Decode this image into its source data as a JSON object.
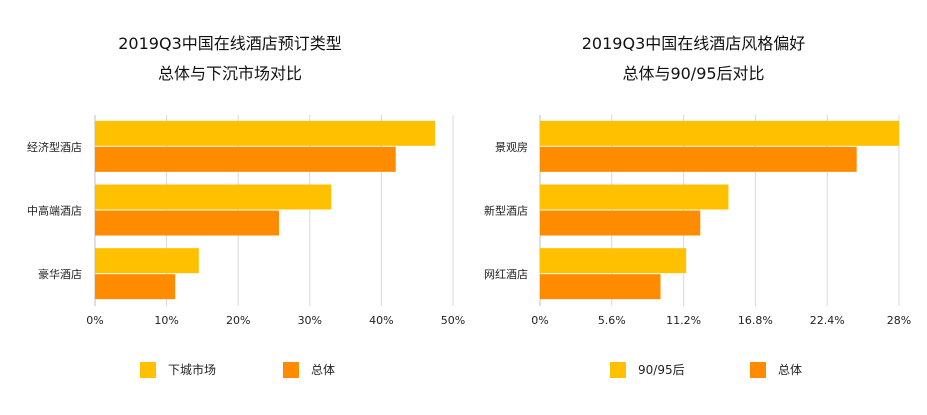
{
  "colors": {
    "series_a": "#FFC000",
    "series_b": "#FF8C00",
    "grid": "#d9d9d9",
    "axis": "#bfbfbf"
  },
  "chart_data": [
    {
      "type": "bar",
      "orientation": "horizontal",
      "title_line1": "2019Q3中国在线酒店预订类型",
      "title_line2": "总体与下沉市场对比",
      "categories": [
        "经济型酒店",
        "中高端酒店",
        "豪华酒店"
      ],
      "series": [
        {
          "name": "下城市场",
          "values": [
            47.5,
            33.0,
            14.5
          ]
        },
        {
          "name": "总体",
          "values": [
            42.0,
            25.7,
            11.2
          ]
        }
      ],
      "ticks": [
        "0%",
        "10%",
        "20%",
        "30%",
        "40%",
        "50%"
      ],
      "xlim": [
        0,
        50
      ],
      "grid": "vertical",
      "legend_position": "bottom"
    },
    {
      "type": "bar",
      "orientation": "horizontal",
      "title_line1": "2019Q3中国在线酒店风格偏好",
      "title_line2": "总体与90/95后对比",
      "categories": [
        "景观房",
        "新型酒店",
        "网红酒店"
      ],
      "series": [
        {
          "name": "90/95后",
          "values": [
            28.0,
            14.7,
            11.4
          ]
        },
        {
          "name": "总体",
          "values": [
            24.7,
            12.5,
            9.4
          ]
        }
      ],
      "ticks": [
        "0%",
        "5.6%",
        "11.2%",
        "16.8%",
        "22.4%",
        "28%"
      ],
      "xlim": [
        0,
        28
      ],
      "grid": "vertical",
      "legend_position": "bottom"
    }
  ]
}
